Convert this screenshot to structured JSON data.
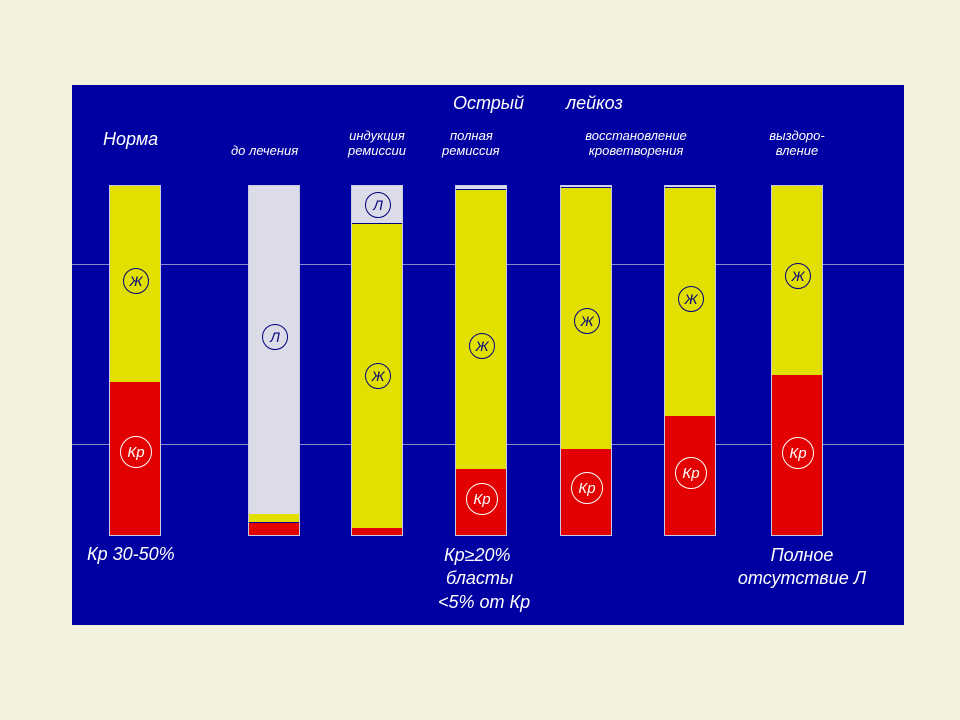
{
  "header": {
    "title_part1": "Острый",
    "title_part2": "лейкоз"
  },
  "columns": {
    "norma": {
      "label": "Норма"
    },
    "do_lecheniya": {
      "label": "до лечения"
    },
    "indukciya": {
      "label_line1": "индукция",
      "label_line2": "ремиссии"
    },
    "polnaya": {
      "label_line1": "полная",
      "label_line2": "ремиссия"
    },
    "vosstanovlenie": {
      "label_line1": "восстановление",
      "label_line2": "кроветворения"
    },
    "vyzdorovlenie": {
      "label_line1": "выздоро-",
      "label_line2": "вление"
    }
  },
  "markers": {
    "fat": "Ж",
    "red_marrow": "Кр",
    "leukemic": "Л"
  },
  "captions": {
    "norma": "Кр 30-50%",
    "remission_line1": "Кр≥20%",
    "remission_line2": "бласты",
    "remission_line3": "<5% от Кр",
    "recovery_line1": "Полное",
    "recovery_line2": "отсутствие Л"
  },
  "bars": [
    {
      "column": "Норма",
      "composition": [
        "yellow",
        "red"
      ],
      "red_fraction": 0.44
    },
    {
      "column": "до лечения",
      "composition": [
        "grey",
        "yellow",
        "red"
      ],
      "red_fraction": 0.04
    },
    {
      "column": "индукция ремиссии",
      "composition": [
        "grey",
        "yellow",
        "red"
      ],
      "red_fraction": 0.02
    },
    {
      "column": "полная ремиссия",
      "composition": [
        "yellow",
        "red"
      ],
      "red_fraction": 0.19
    },
    {
      "column": "восстановление кроветворения (1)",
      "composition": [
        "yellow",
        "red"
      ],
      "red_fraction": 0.25
    },
    {
      "column": "восстановление кроветворения (2)",
      "composition": [
        "yellow",
        "red"
      ],
      "red_fraction": 0.34
    },
    {
      "column": "выздоровление",
      "composition": [
        "yellow",
        "red"
      ],
      "red_fraction": 0.46
    }
  ],
  "colors": {
    "panel": "#0000a2",
    "fat": "#e2e000",
    "red_marrow": "#e20000",
    "leukemic": "#dcdce8",
    "outer_background": "#f3f2df"
  }
}
